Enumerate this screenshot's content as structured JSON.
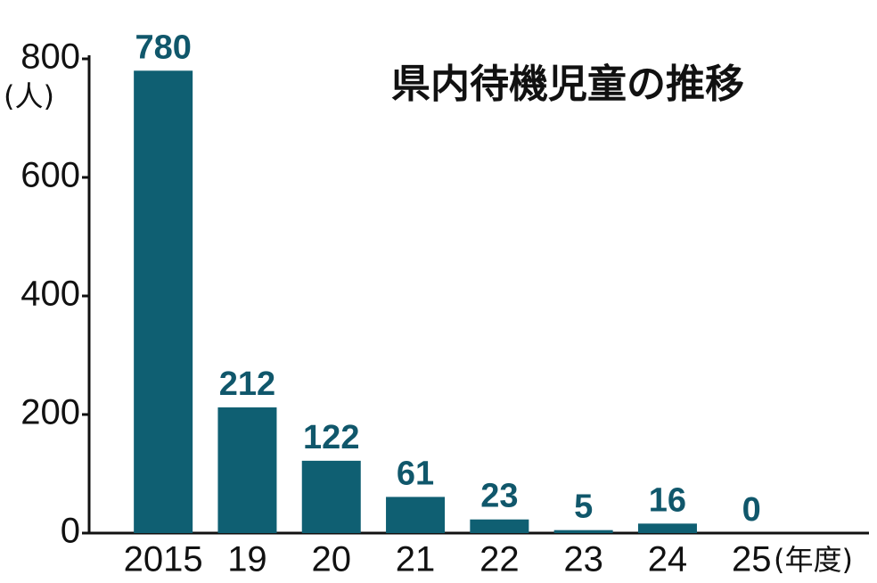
{
  "chart_data": {
    "type": "bar",
    "title": "県内待機児童の推移",
    "y_unit": "(人)",
    "x_unit": "(年度)",
    "categories": [
      "2015",
      "19",
      "20",
      "21",
      "22",
      "23",
      "24",
      "25"
    ],
    "values": [
      780,
      212,
      122,
      61,
      23,
      5,
      16,
      0
    ],
    "color": "#0f5f72",
    "ylim": [
      0,
      800
    ],
    "yticks": [
      0,
      200,
      400,
      600,
      800
    ]
  }
}
